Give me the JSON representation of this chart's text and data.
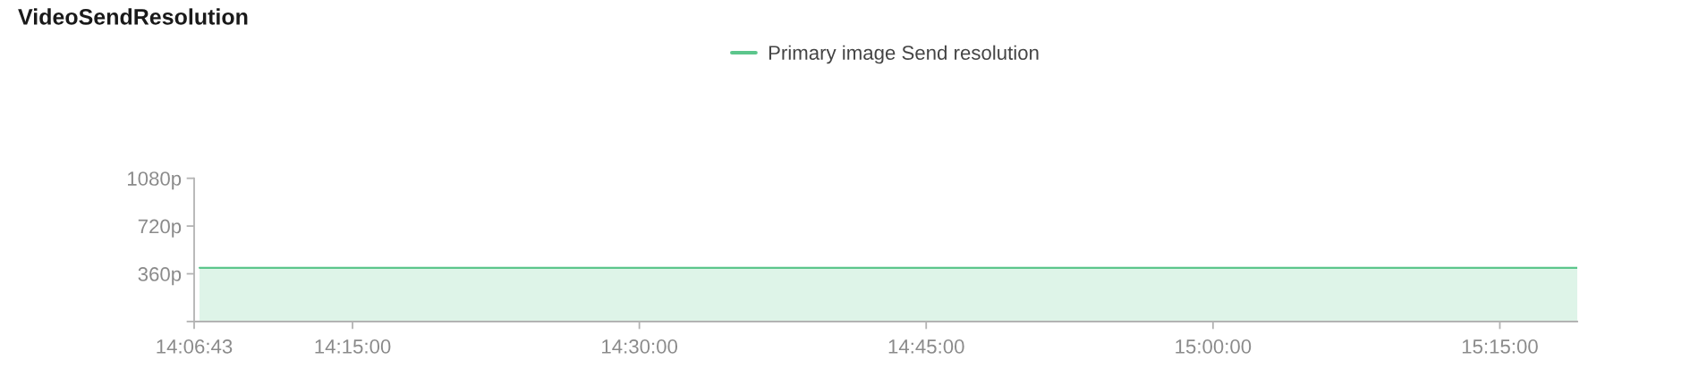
{
  "chart_data": {
    "type": "area",
    "title": "VideoSendResolution",
    "x": [
      14.116667,
      15.3175
    ],
    "series": [
      {
        "name": "Primary image Send resolution",
        "color": "#5cc68c",
        "values": [
          405,
          405
        ]
      }
    ],
    "xlim": [
      14.111944,
      15.3175
    ],
    "xticks": [
      {
        "value": 14.111944,
        "label": "14:06:43"
      },
      {
        "value": 14.25,
        "label": "14:15:00"
      },
      {
        "value": 14.5,
        "label": "14:30:00"
      },
      {
        "value": 14.75,
        "label": "14:45:00"
      },
      {
        "value": 15.0,
        "label": "15:00:00"
      },
      {
        "value": 15.25,
        "label": "15:15:00"
      }
    ],
    "ylim": [
      0,
      1080
    ],
    "yticks": [
      {
        "value": 0,
        "label": null
      },
      {
        "value": 360,
        "label": "360p"
      },
      {
        "value": 720,
        "label": "720p"
      },
      {
        "value": 1080,
        "label": "1080p"
      }
    ],
    "grid": false,
    "legend": "top"
  }
}
